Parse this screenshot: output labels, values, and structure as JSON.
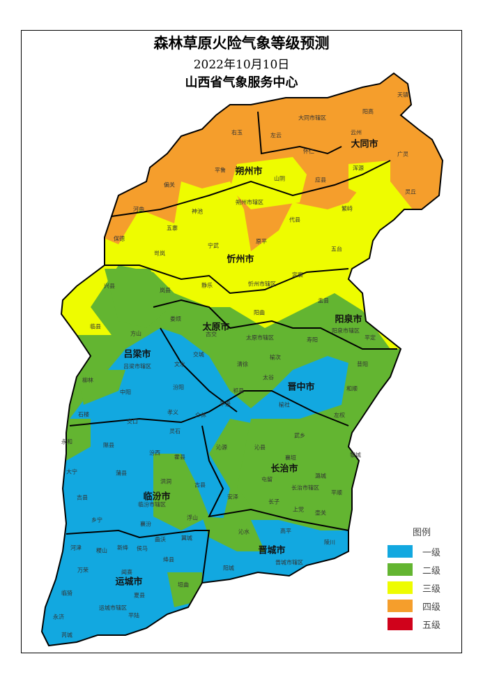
{
  "header": {
    "title": "森林草原火险气象等级预测",
    "date": "2022年10月10日",
    "issuer": "山西省气象服务中心"
  },
  "legend": {
    "title": "图例",
    "items": [
      {
        "label": "一级",
        "color": "#12a8e0"
      },
      {
        "label": "二级",
        "color": "#63b531"
      },
      {
        "label": "三级",
        "color": "#eefc00"
      },
      {
        "label": "四级",
        "color": "#f59e2c"
      },
      {
        "label": "五级",
        "color": "#d0021b"
      }
    ]
  },
  "cities": [
    "大同市",
    "朔州市",
    "忻州市",
    "太原市",
    "阳泉市",
    "吕梁市",
    "晋中市",
    "长治市",
    "临汾市",
    "晋城市",
    "运城市"
  ],
  "counties": [
    "天镇",
    "阳高",
    "大同市辖区",
    "左云",
    "右玉",
    "云州",
    "怀仁",
    "广灵",
    "浑源",
    "平鲁",
    "山阴",
    "应县",
    "灵丘",
    "朔州市辖区",
    "偏关",
    "河曲",
    "神池",
    "代县",
    "繁峙",
    "五寨",
    "保德",
    "宁武",
    "原平",
    "五台",
    "岢岚",
    "定襄",
    "兴县",
    "岚县",
    "静乐",
    "忻州市辖区",
    "盂县",
    "阳曲",
    "临县",
    "娄烦",
    "方山",
    "古交",
    "太原市辖区",
    "阳泉市辖区",
    "平定",
    "寿阳",
    "交城",
    "文水",
    "吕梁市辖区",
    "清徐",
    "榆次",
    "昔阳",
    "柳林",
    "太谷",
    "祁县",
    "汾阳",
    "中阳",
    "和顺",
    "榆社",
    "平遥",
    "孝义",
    "石楼",
    "介休",
    "交口",
    "左权",
    "灵石",
    "武乡",
    "永和",
    "隰县",
    "汾西",
    "霍县",
    "沁源",
    "沁县",
    "黎城",
    "襄垣",
    "大宁",
    "蒲县",
    "洪洞",
    "古县",
    "屯留",
    "潞城",
    "长治市辖区",
    "平顺",
    "安泽",
    "吉县",
    "长子",
    "临汾市辖区",
    "上党",
    "壶关",
    "浮山",
    "乡宁",
    "襄汾",
    "沁水",
    "高平",
    "翼城",
    "曲沃",
    "陵川",
    "河津",
    "稷山",
    "新绛",
    "侯马",
    "绛县",
    "阳城",
    "晋城市辖区",
    "万荣",
    "闻喜",
    "垣曲",
    "临猗",
    "夏县",
    "运城市辖区",
    "永济",
    "平陆",
    "芮城"
  ]
}
